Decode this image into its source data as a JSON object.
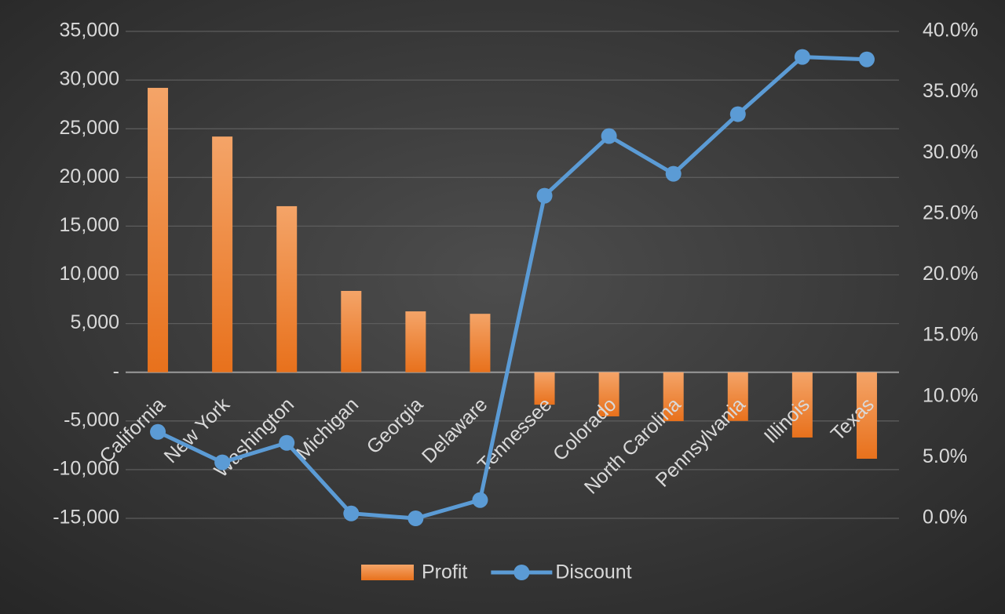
{
  "chart_data": {
    "type": "bar",
    "categories": [
      "California",
      "New York",
      "Washington",
      "Michigan",
      "Georgia",
      "Delaware",
      "Tennessee",
      "Colorado",
      "North Carolina",
      "Pennsylvania",
      "Illinois",
      "Texas"
    ],
    "series": [
      {
        "name": "Profit",
        "type": "bar",
        "color": "#ed7d31",
        "values": [
          29200,
          24200,
          17050,
          8350,
          6250,
          6000,
          -3330,
          -4530,
          -5020,
          -5000,
          -6700,
          -8880
        ]
      },
      {
        "name": "Discount",
        "type": "line",
        "axis": "y2",
        "color": "#5b9bd5",
        "values": [
          7.1,
          4.6,
          6.2,
          0.4,
          0,
          1.5,
          26.5,
          31.4,
          28.3,
          33.2,
          37.9,
          37.7
        ]
      }
    ],
    "ylim": [
      -15000,
      35000
    ],
    "yticks": [
      {
        "value": -15000,
        "label": "-15,000"
      },
      {
        "value": -10000,
        "label": "-10,000"
      },
      {
        "value": -5000,
        "label": "-5,000"
      },
      {
        "value": 0,
        "label": "-"
      },
      {
        "value": 5000,
        "label": "5,000"
      },
      {
        "value": 10000,
        "label": "10,000"
      },
      {
        "value": 15000,
        "label": "15,000"
      },
      {
        "value": 20000,
        "label": "20,000"
      },
      {
        "value": 25000,
        "label": "25,000"
      },
      {
        "value": 30000,
        "label": "30,000"
      },
      {
        "value": 35000,
        "label": "35,000"
      }
    ],
    "y2lim": [
      0,
      40
    ],
    "y2ticks": [
      {
        "value": 0,
        "label": "0.0%"
      },
      {
        "value": 5,
        "label": "5.0%"
      },
      {
        "value": 10,
        "label": "10.0%"
      },
      {
        "value": 15,
        "label": "15.0%"
      },
      {
        "value": 20,
        "label": "20.0%"
      },
      {
        "value": 25,
        "label": "25.0%"
      },
      {
        "value": 30,
        "label": "30.0%"
      },
      {
        "value": 35,
        "label": "35.0%"
      },
      {
        "value": 40,
        "label": "40.0%"
      }
    ],
    "grid": true,
    "legend": "bottom"
  }
}
